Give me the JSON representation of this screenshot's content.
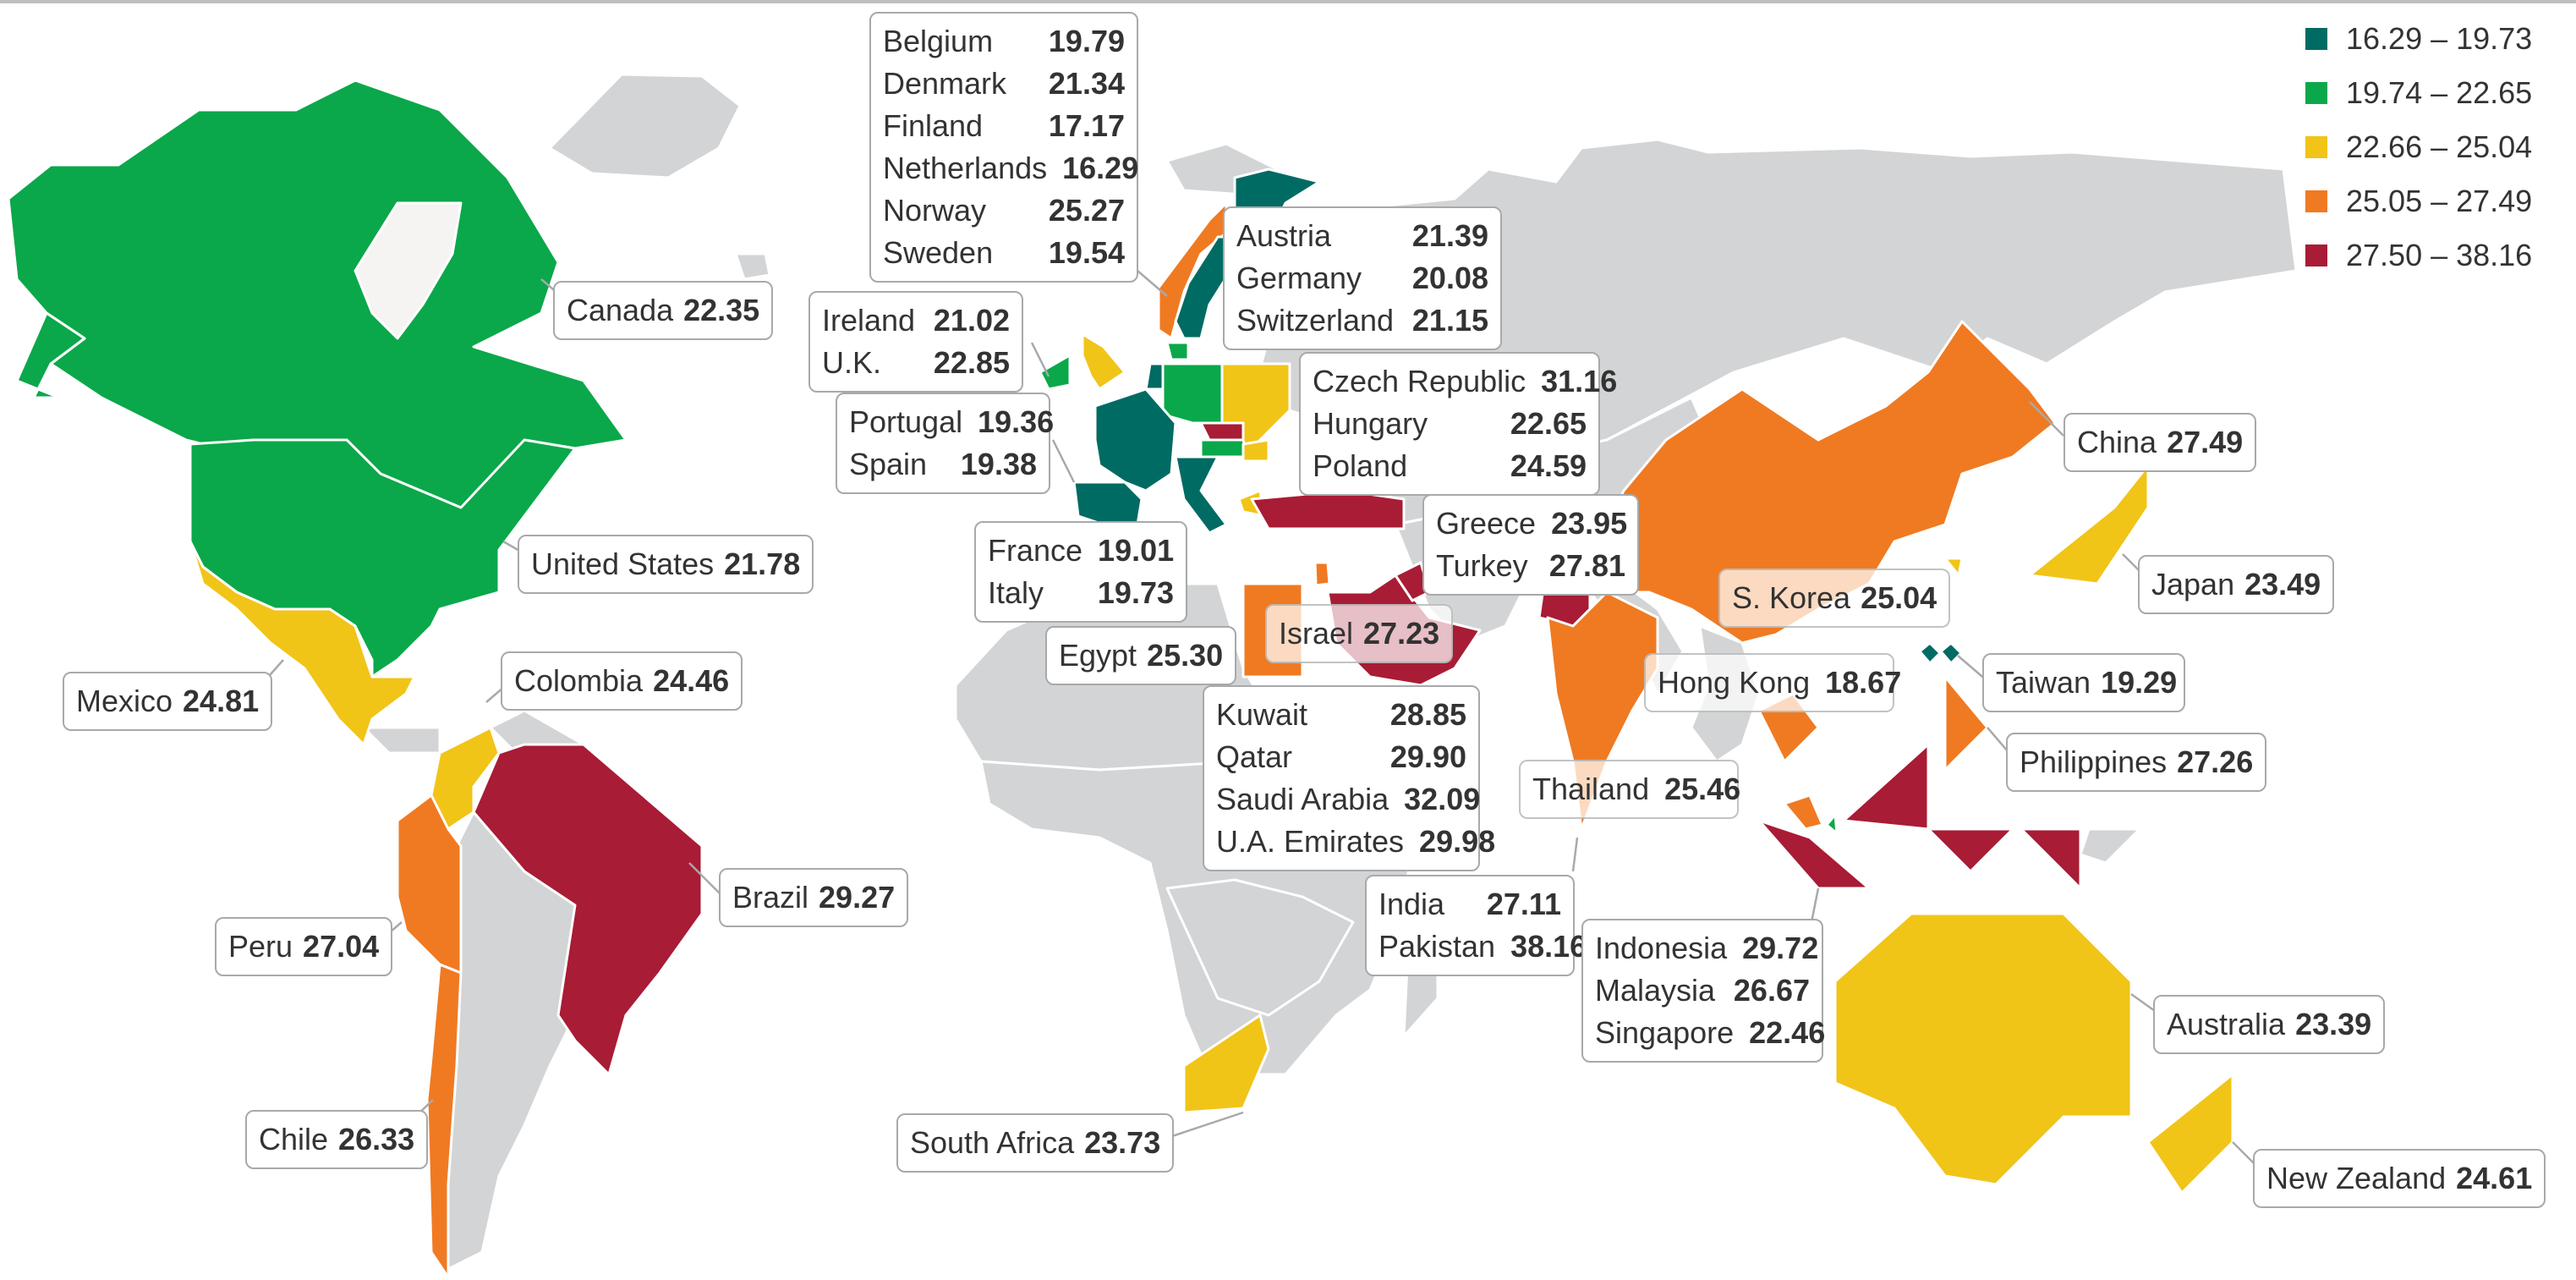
{
  "legend": [
    {
      "label": "16.29 – 19.73",
      "color": "#006b63"
    },
    {
      "label": "19.74 – 22.65",
      "color": "#0aa84a"
    },
    {
      "label": "22.66 – 25.04",
      "color": "#f1c418"
    },
    {
      "label": "25.05 – 27.49",
      "color": "#f07a22"
    },
    {
      "label": "27.50 – 38.16",
      "color": "#a81c35"
    }
  ],
  "colors": {
    "no_data": "#d3d4d5",
    "border": "#ffffff",
    "background": "#ffffff",
    "callout_border": "#a7a9ab"
  },
  "callouts": {
    "nordic": [
      {
        "name": "Belgium",
        "value": "19.79"
      },
      {
        "name": "Denmark",
        "value": "21.34"
      },
      {
        "name": "Finland",
        "value": "17.17"
      },
      {
        "name": "Netherlands",
        "value": "16.29"
      },
      {
        "name": "Norway",
        "value": "25.27"
      },
      {
        "name": "Sweden",
        "value": "19.54"
      }
    ],
    "dach": [
      {
        "name": "Austria",
        "value": "21.39"
      },
      {
        "name": "Germany",
        "value": "20.08"
      },
      {
        "name": "Switzerland",
        "value": "21.15"
      }
    ],
    "ireland_uk": [
      {
        "name": "Ireland",
        "value": "21.02"
      },
      {
        "name": "U.K.",
        "value": "22.85"
      }
    ],
    "iberia": [
      {
        "name": "Portugal",
        "value": "19.36"
      },
      {
        "name": "Spain",
        "value": "19.38"
      }
    ],
    "central_europe": [
      {
        "name": "Czech Republic",
        "value": "31.16"
      },
      {
        "name": "Hungary",
        "value": "22.65"
      },
      {
        "name": "Poland",
        "value": "24.59"
      }
    ],
    "france_italy": [
      {
        "name": "France",
        "value": "19.01"
      },
      {
        "name": "Italy",
        "value": "19.73"
      }
    ],
    "greece_turkey": [
      {
        "name": "Greece",
        "value": "23.95"
      },
      {
        "name": "Turkey",
        "value": "27.81"
      }
    ],
    "gulf": [
      {
        "name": "Kuwait",
        "value": "28.85"
      },
      {
        "name": "Qatar",
        "value": "29.90"
      },
      {
        "name": "Saudi Arabia",
        "value": "32.09"
      },
      {
        "name": "U.A. Emirates",
        "value": "29.98"
      }
    ],
    "south_asia": [
      {
        "name": "India",
        "value": "27.11"
      },
      {
        "name": "Pakistan",
        "value": "38.16"
      }
    ],
    "southeast_asia": [
      {
        "name": "Indonesia",
        "value": "29.72"
      },
      {
        "name": "Malaysia",
        "value": "26.67"
      },
      {
        "name": "Singapore",
        "value": "22.46"
      }
    ],
    "canada": [
      {
        "name": "Canada",
        "value": "22.35"
      }
    ],
    "united_states": [
      {
        "name": "United States",
        "value": "21.78"
      }
    ],
    "mexico": [
      {
        "name": "Mexico",
        "value": "24.81"
      }
    ],
    "colombia": [
      {
        "name": "Colombia",
        "value": "24.46"
      }
    ],
    "brazil": [
      {
        "name": "Brazil",
        "value": "29.27"
      }
    ],
    "peru": [
      {
        "name": "Peru",
        "value": "27.04"
      }
    ],
    "chile": [
      {
        "name": "Chile",
        "value": "26.33"
      }
    ],
    "egypt": [
      {
        "name": "Egypt",
        "value": "25.30"
      }
    ],
    "israel": [
      {
        "name": "Israel",
        "value": "27.23"
      }
    ],
    "south_africa": [
      {
        "name": "South Africa",
        "value": "23.73"
      }
    ],
    "china": [
      {
        "name": "China",
        "value": "27.49"
      }
    ],
    "japan": [
      {
        "name": "Japan",
        "value": "23.49"
      }
    ],
    "south_korea": [
      {
        "name": "S. Korea",
        "value": "25.04"
      }
    ],
    "hong_kong": [
      {
        "name": "Hong Kong",
        "value": "18.67"
      }
    ],
    "taiwan": [
      {
        "name": "Taiwan",
        "value": "19.29"
      }
    ],
    "philippines": [
      {
        "name": "Philippines",
        "value": "27.26"
      }
    ],
    "thailand": [
      {
        "name": "Thailand",
        "value": "25.46"
      }
    ],
    "australia": [
      {
        "name": "Australia",
        "value": "23.39"
      }
    ],
    "new_zealand": [
      {
        "name": "New Zealand",
        "value": "24.61"
      }
    ]
  }
}
